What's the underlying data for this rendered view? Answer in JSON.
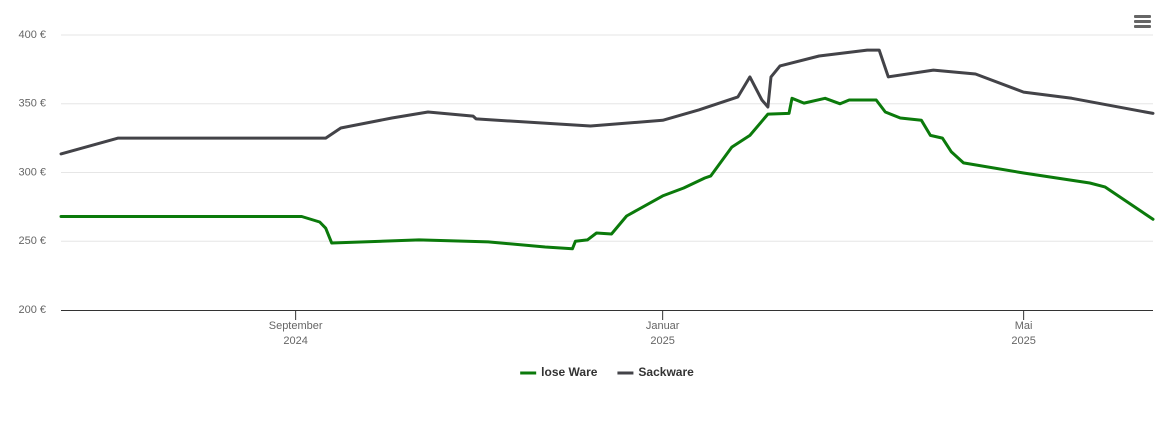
{
  "chart_data": {
    "type": "line",
    "x": [
      "2024-06-15",
      "2024-07-04",
      "2024-09-03",
      "2024-09-09",
      "2024-09-11",
      "2024-09-13",
      "2024-09-16",
      "2024-10-03",
      "2024-10-12",
      "2024-10-15",
      "2024-10-30",
      "2024-10-31",
      "2024-11-04",
      "2024-11-23",
      "2024-12-02",
      "2024-12-03",
      "2024-12-07",
      "2024-12-08",
      "2024-12-10",
      "2024-12-15",
      "2024-12-20",
      "2025-01-01",
      "2025-01-08",
      "2025-01-13",
      "2025-01-15",
      "2025-01-17",
      "2025-01-24",
      "2025-01-26",
      "2025-01-30",
      "2025-02-03",
      "2025-02-05",
      "2025-02-06",
      "2025-02-09",
      "2025-02-12",
      "2025-02-13",
      "2025-02-17",
      "2025-02-22",
      "2025-02-24",
      "2025-03-01",
      "2025-03-04",
      "2025-03-10",
      "2025-03-13",
      "2025-03-14",
      "2025-03-16",
      "2025-03-17",
      "2025-03-21",
      "2025-03-28",
      "2025-03-31",
      "2025-04-01",
      "2025-04-04",
      "2025-04-07",
      "2025-04-11",
      "2025-04-15",
      "2025-05-01",
      "2025-05-17",
      "2025-05-23",
      "2025-05-28",
      "2025-06-13"
    ],
    "series": [
      {
        "name": "lose Ware",
        "color": "#0b7a0b",
        "values": [
          268,
          null,
          268,
          264,
          259.5,
          248.7,
          null,
          null,
          251,
          null,
          null,
          null,
          249.5,
          245.8,
          244.5,
          250,
          251,
          null,
          256,
          255.3,
          268.4,
          283,
          288.7,
          null,
          296,
          297.5,
          318.5,
          null,
          327,
          null,
          342.5,
          null,
          null,
          343,
          354,
          350.5,
          null,
          354,
          350,
          352.7,
          null,
          352.7,
          null,
          344,
          null,
          339.6,
          338,
          327,
          null,
          325,
          315,
          307,
          null,
          299.6,
          null,
          292.4,
          289.5,
          266
        ]
      },
      {
        "name": "Sackware",
        "color": "#434348",
        "values": [
          313.5,
          325,
          null,
          null,
          325,
          null,
          332.4,
          339.6,
          null,
          344,
          341,
          339,
          null,
          null,
          null,
          null,
          null,
          333.8,
          null,
          null,
          null,
          338,
          null,
          345.5,
          null,
          null,
          null,
          355,
          369.5,
          352.7,
          347.6,
          369.5,
          377.5,
          null,
          null,
          null,
          384.7,
          null,
          null,
          null,
          389,
          null,
          389,
          null,
          369.5,
          null,
          null,
          null,
          374.5,
          null,
          null,
          null,
          371.6,
          358.5,
          354,
          null,
          null,
          343
        ]
      }
    ],
    "xlim": [
      "2024-06-15",
      "2025-06-13"
    ],
    "xticks": [
      {
        "value": "2024-09-01",
        "label": [
          "September",
          "2024"
        ]
      },
      {
        "value": "2025-01-01",
        "label": [
          "Januar",
          "2025"
        ]
      },
      {
        "value": "2025-05-01",
        "label": [
          "Mai",
          "2025"
        ]
      }
    ],
    "ylim": [
      200,
      400
    ],
    "yticks": [
      {
        "value": 200,
        "label": "200 €"
      },
      {
        "value": 250,
        "label": "250 €"
      },
      {
        "value": 300,
        "label": "300 €"
      },
      {
        "value": 350,
        "label": "350 €"
      },
      {
        "value": 400,
        "label": "400 €"
      }
    ],
    "grid": true,
    "legend": "bottom"
  }
}
